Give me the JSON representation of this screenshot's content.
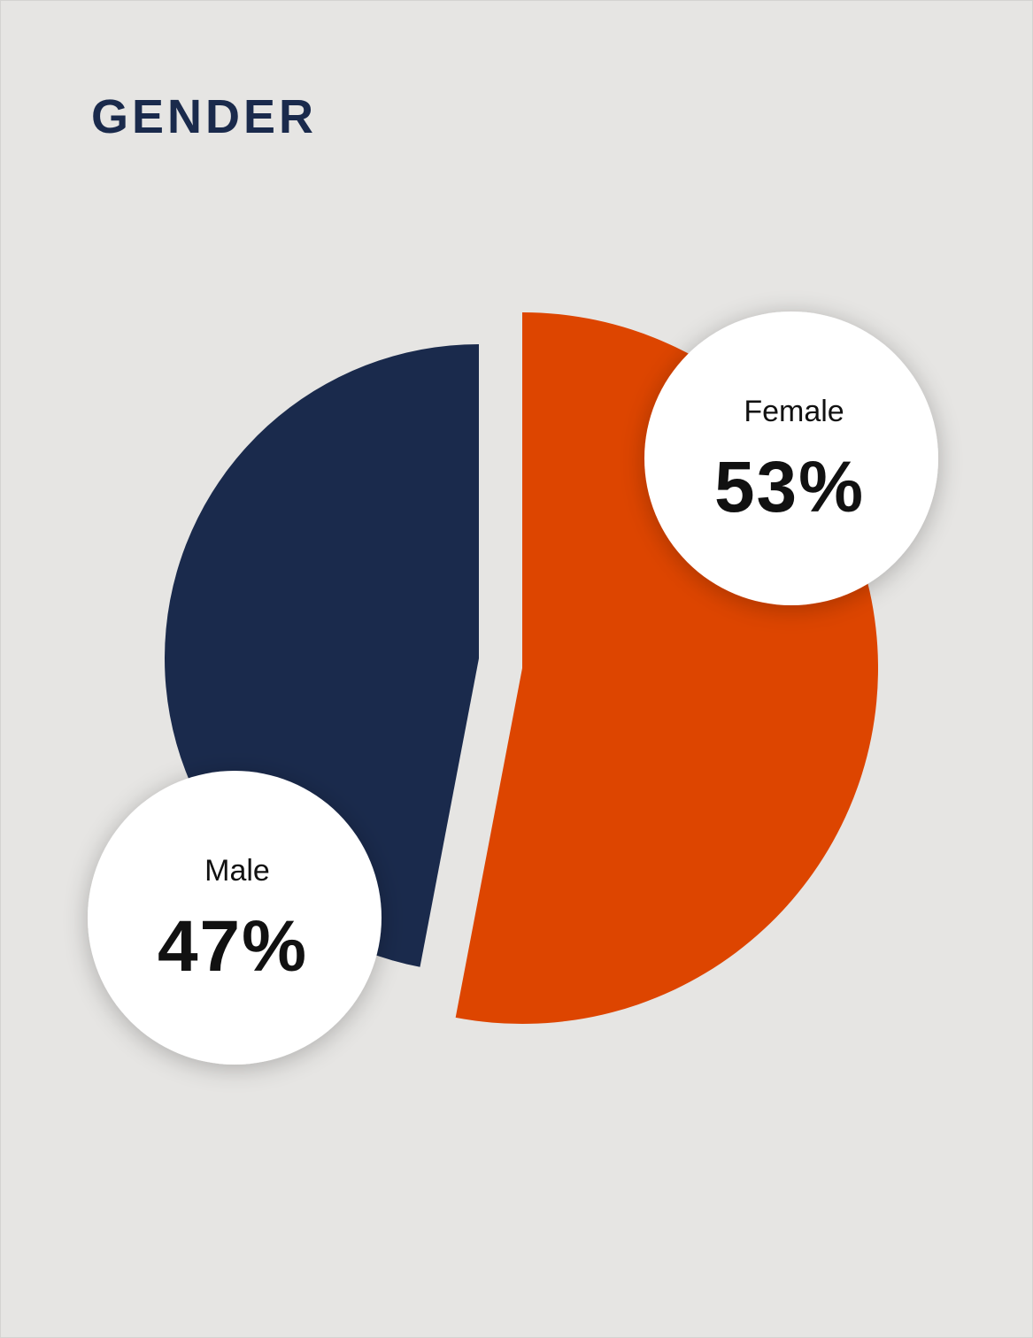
{
  "chart_data": {
    "type": "pie",
    "title": "GENDER",
    "categories": [
      "Female",
      "Male"
    ],
    "values": [
      53,
      47
    ],
    "value_labels": [
      "53%",
      "47%"
    ],
    "colors": [
      "#dd4500",
      "#1a2a4c"
    ]
  }
}
